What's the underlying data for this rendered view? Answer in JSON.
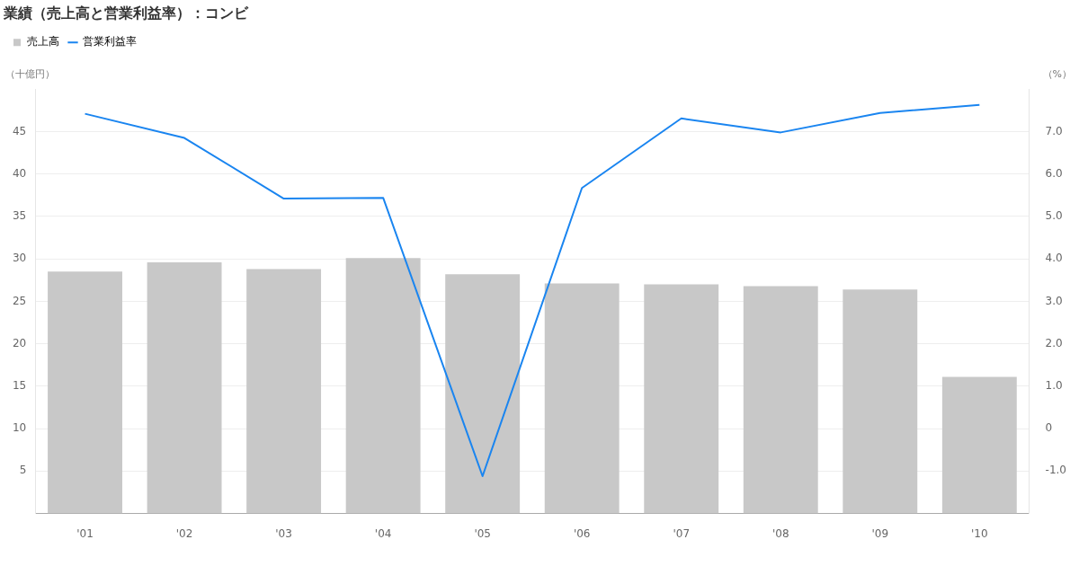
{
  "chart_data": {
    "type": "bar",
    "title": "業績（売上高と営業利益率）：コンビ",
    "ylabel": "（十億円）",
    "y2label": "（%）",
    "categories": [
      "'01",
      "'02",
      "'03",
      "'04",
      "'05",
      "'06",
      "'07",
      "'08",
      "'09",
      "'10"
    ],
    "series": [
      {
        "name": "売上高",
        "color": "#c8c8c8",
        "values": [
          28.5,
          29.6,
          28.8,
          30.1,
          28.2,
          27.1,
          27.0,
          26.8,
          26.4,
          16.1
        ]
      },
      {
        "name": "営業利益率",
        "type": "line",
        "axis": "y2",
        "color": "#1a85f0",
        "values": [
          7.42,
          6.85,
          5.42,
          5.44,
          -1.12,
          5.67,
          7.31,
          6.98,
          7.44,
          7.63
        ]
      }
    ],
    "ylim": [
      0,
      50
    ],
    "yticks": [
      5,
      10,
      15,
      20,
      25,
      30,
      35,
      40,
      45
    ],
    "y2lim": [
      -2,
      8
    ],
    "y2ticks": [
      {
        "value": -1,
        "label": "-1.0"
      },
      {
        "value": 0,
        "label": "0"
      },
      {
        "value": 1,
        "label": "1.0"
      },
      {
        "value": 2,
        "label": "2.0"
      },
      {
        "value": 3,
        "label": "3.0"
      },
      {
        "value": 4,
        "label": "4.0"
      },
      {
        "value": 5,
        "label": "5.0"
      },
      {
        "value": 6,
        "label": "6.0"
      },
      {
        "value": 7,
        "label": "7.0"
      }
    ],
    "grid": "y",
    "legend": "top left",
    "marker": "none",
    "line_style": "solid"
  }
}
